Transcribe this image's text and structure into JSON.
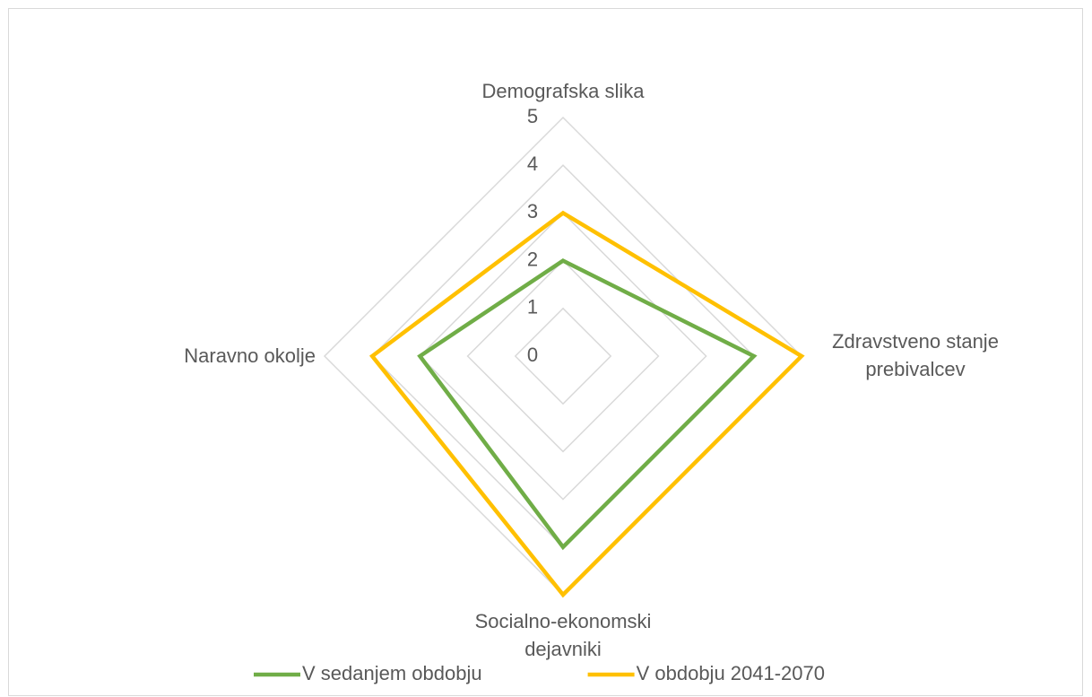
{
  "chart_data": {
    "type": "radar",
    "categories": [
      "Demografska slika",
      "Zdravstveno stanje prebivalcev",
      "Socialno-ekonomski dejavniki",
      "Naravno okolje"
    ],
    "series": [
      {
        "name": "V sedanjem obdobju",
        "color": "#70ad47",
        "values": [
          2,
          4,
          4,
          3
        ]
      },
      {
        "name": "V obdobju 2041-2070",
        "color": "#ffc000",
        "values": [
          3,
          5,
          5,
          4
        ]
      }
    ],
    "ylim": [
      0,
      5
    ],
    "yticks": [
      0,
      1,
      2,
      3,
      4,
      5
    ],
    "grid": true,
    "legend": "bottom"
  }
}
